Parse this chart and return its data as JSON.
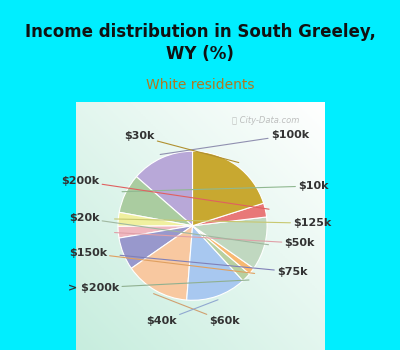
{
  "title": "Income distribution in South Greeley,\nWY (%)",
  "subtitle": "White residents",
  "title_color": "#111111",
  "subtitle_color": "#b07820",
  "bg_cyan": "#00eeff",
  "labels_order": [
    "$100k",
    "$10k",
    "$125k",
    "$50k",
    "$75k",
    "$60k",
    "$40k",
    "> $200k",
    "$150k",
    "$20k",
    "$200k",
    "$30k"
  ],
  "values": [
    13.5,
    8.5,
    3.0,
    2.5,
    7.0,
    14.0,
    13.0,
    2.0,
    1.5,
    11.5,
    3.0,
    20.0
  ],
  "colors": [
    "#b8a8d8",
    "#aacca0",
    "#f0f0a0",
    "#f0b8c0",
    "#9898cc",
    "#f8c8a0",
    "#a8c8f0",
    "#b8d0a0",
    "#f8b870",
    "#c0d8c0",
    "#e87878",
    "#c8a830"
  ],
  "startangle": 90,
  "label_fontsize": 8,
  "label_color": "#333333",
  "title_fontsize": 12,
  "subtitle_fontsize": 10
}
